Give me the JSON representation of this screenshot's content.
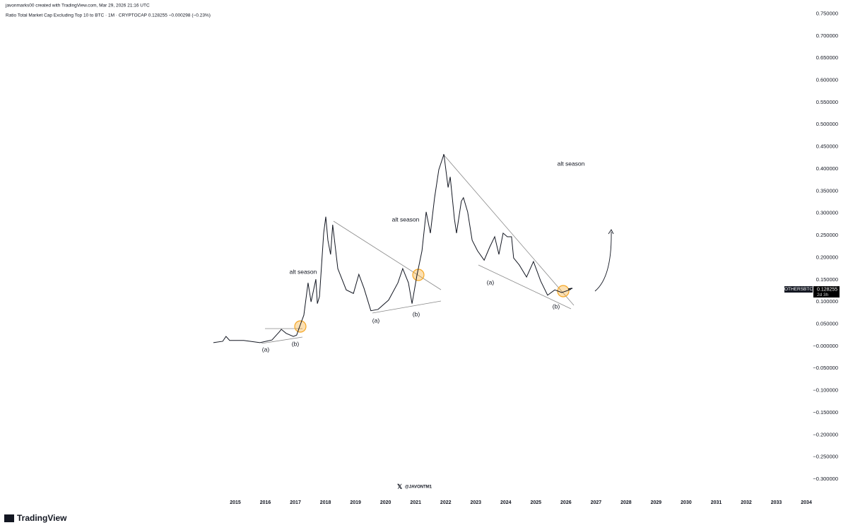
{
  "header": {
    "credit": "javonmarks00 created with TradingView.com, Mar 29, 2026 21:16 UTC",
    "symbol_line": "Ratio Total Market Cap Excluding Top 10 to BTC · 1M · CRYPTOCAP  0.128255  −0.000298 (−0.23%)"
  },
  "branding": {
    "watermark": "@JAVONTM1",
    "logo": "TradingView"
  },
  "chart_data": {
    "type": "line",
    "x": [
      2014.27,
      2014.58,
      2014.69,
      2014.81,
      2015.28,
      2015.82,
      2016.22,
      2016.46,
      2016.53,
      2016.69,
      2016.93,
      2017.04,
      2017.16,
      2017.28,
      2017.42,
      2017.52,
      2017.68,
      2017.73,
      2017.8,
      2017.94,
      2018.01,
      2018.08,
      2018.17,
      2018.24,
      2018.41,
      2018.69,
      2018.93,
      2019.11,
      2019.28,
      2019.51,
      2019.75,
      2020.1,
      2020.41,
      2020.57,
      2020.76,
      2020.88,
      2021.04,
      2021.21,
      2021.35,
      2021.49,
      2021.63,
      2021.77,
      2021.94,
      2022.08,
      2022.15,
      2022.29,
      2022.36,
      2022.52,
      2022.59,
      2022.73,
      2022.88,
      2023.06,
      2023.28,
      2023.46,
      2023.63,
      2023.77,
      2023.91,
      2024.05,
      2024.19,
      2024.26,
      2024.45,
      2024.69,
      2024.92,
      2025.16,
      2025.39,
      2025.63,
      2025.86,
      2026.17
    ],
    "series": [
      {
        "name": "OTHERSBTC",
        "color": "#131722",
        "values": [
          0.008,
          0.011,
          0.022,
          0.013,
          0.013,
          0.008,
          0.014,
          0.032,
          0.038,
          0.029,
          0.022,
          0.025,
          0.048,
          0.07,
          0.143,
          0.1,
          0.151,
          0.096,
          0.112,
          0.255,
          0.292,
          0.239,
          0.207,
          0.274,
          0.175,
          0.127,
          0.119,
          0.162,
          0.131,
          0.08,
          0.083,
          0.104,
          0.143,
          0.175,
          0.143,
          0.096,
          0.159,
          0.215,
          0.303,
          0.255,
          0.335,
          0.398,
          0.433,
          0.358,
          0.382,
          0.287,
          0.255,
          0.327,
          0.335,
          0.303,
          0.239,
          0.215,
          0.194,
          0.223,
          0.247,
          0.207,
          0.255,
          0.247,
          0.247,
          0.199,
          0.183,
          0.156,
          0.191,
          0.147,
          0.115,
          0.127,
          0.121,
          0.128255
        ]
      }
    ],
    "countdown": "2d 3h",
    "xlim": [
      2007.17,
      2034.21
    ],
    "xticks": [
      2015,
      2016,
      2017,
      2018,
      2019,
      2020,
      2021,
      2022,
      2023,
      2024,
      2025,
      2026,
      2027,
      2028,
      2029,
      2030,
      2031,
      2032,
      2033,
      2034
    ],
    "ylim": [
      -0.335,
      0.781
    ],
    "yticks": [
      {
        "value": 0.75,
        "label": "0.750000"
      },
      {
        "value": 0.7,
        "label": "0.700000"
      },
      {
        "value": 0.65,
        "label": "0.650000"
      },
      {
        "value": 0.6,
        "label": "0.600000"
      },
      {
        "value": 0.55,
        "label": "0.550000"
      },
      {
        "value": 0.5,
        "label": "0.500000"
      },
      {
        "value": 0.45,
        "label": "0.450000"
      },
      {
        "value": 0.4,
        "label": "0.400000"
      },
      {
        "value": 0.35,
        "label": "0.350000"
      },
      {
        "value": 0.3,
        "label": "0.300000"
      },
      {
        "value": 0.25,
        "label": "0.250000"
      },
      {
        "value": 0.2,
        "label": "0.200000"
      },
      {
        "value": 0.15,
        "label": "0.150000"
      },
      {
        "value": 0.1,
        "label": "0.100000"
      },
      {
        "value": 0.05,
        "label": "0.050000"
      },
      {
        "value": 0,
        "label": "−0.000000"
      },
      {
        "value": -0.05,
        "label": "−0.050000"
      },
      {
        "value": -0.1,
        "label": "−0.100000"
      },
      {
        "value": -0.15,
        "label": "−0.150000"
      },
      {
        "value": -0.2,
        "label": "−0.200000"
      },
      {
        "value": -0.25,
        "label": "−0.250000"
      },
      {
        "value": -0.3,
        "label": "−0.300000"
      }
    ],
    "annotations": [
      "alt season",
      "alt season",
      "alt season",
      "(a)",
      "(a)",
      "(a)",
      "(b)",
      "(b)",
      "(b)"
    ],
    "grid": false
  }
}
